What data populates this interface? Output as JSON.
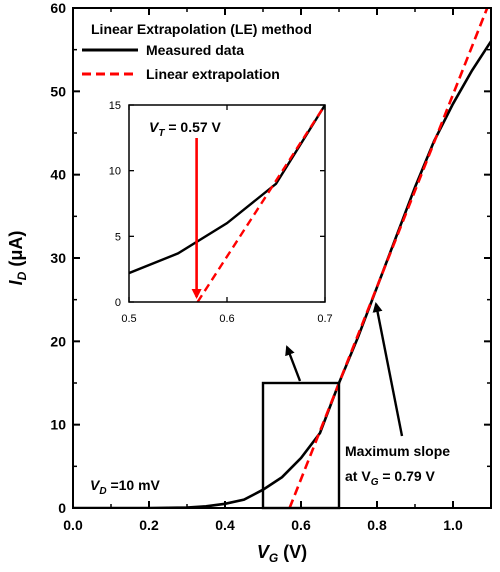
{
  "chart_data": {
    "type": "line",
    "title": "Linear Extrapolation (LE) method",
    "xlabel": {
      "main": "V",
      "sub": "G",
      "unit": " (V)"
    },
    "ylabel": {
      "main": "I",
      "sub": "D",
      "unit": " (μA)"
    },
    "xlim": [
      0.0,
      1.1
    ],
    "ylim": [
      0,
      60
    ],
    "xticks": [
      "0.0",
      "0.2",
      "0.4",
      "0.6",
      "0.8",
      "1.0"
    ],
    "yticks": [
      "0",
      "10",
      "20",
      "30",
      "40",
      "50",
      "60"
    ],
    "legend": {
      "placement": "top-left",
      "entries": [
        "Measured data",
        "Linear extrapolation"
      ]
    },
    "series": [
      {
        "name": "Measured data",
        "color": "#000000",
        "style": "solid",
        "x": [
          0.0,
          0.1,
          0.2,
          0.3,
          0.35,
          0.4,
          0.45,
          0.5,
          0.55,
          0.6,
          0.65,
          0.7,
          0.75,
          0.8,
          0.85,
          0.9,
          0.95,
          1.0,
          1.05,
          1.1
        ],
        "y": [
          0,
          0,
          0,
          0.05,
          0.2,
          0.5,
          1.0,
          2.2,
          3.7,
          6.0,
          9.0,
          15.0,
          20.5,
          26.5,
          32.5,
          38.5,
          44.0,
          48.5,
          52.5,
          56.0
        ]
      },
      {
        "name": "Linear extrapolation",
        "color": "#ff0000",
        "style": "dashed",
        "x": [
          0.57,
          1.09
        ],
        "y": [
          0,
          60
        ]
      }
    ],
    "annotations": {
      "vd": {
        "label": "V",
        "sub": "D",
        "rest": " =10 mV"
      },
      "max_slope": {
        "line1": "Maximum slope",
        "line2_pre": "at V",
        "line2_sub": "G",
        "line2_post": " = 0.79 V"
      },
      "zoom_box": {
        "x": [
          0.5,
          0.7
        ],
        "y": [
          0,
          15
        ]
      }
    },
    "inset": {
      "xlim": [
        0.5,
        0.7
      ],
      "ylim": [
        0,
        15
      ],
      "xticks": [
        "0.5",
        "0.6",
        "0.7"
      ],
      "yticks": [
        "0",
        "5",
        "10",
        "15"
      ],
      "vt": {
        "label": "V",
        "sub": "T",
        "rest": " = 0.57 V",
        "x": 0.57
      }
    },
    "colors": {
      "measured": "#000000",
      "extrapolation": "#ff0000"
    }
  }
}
